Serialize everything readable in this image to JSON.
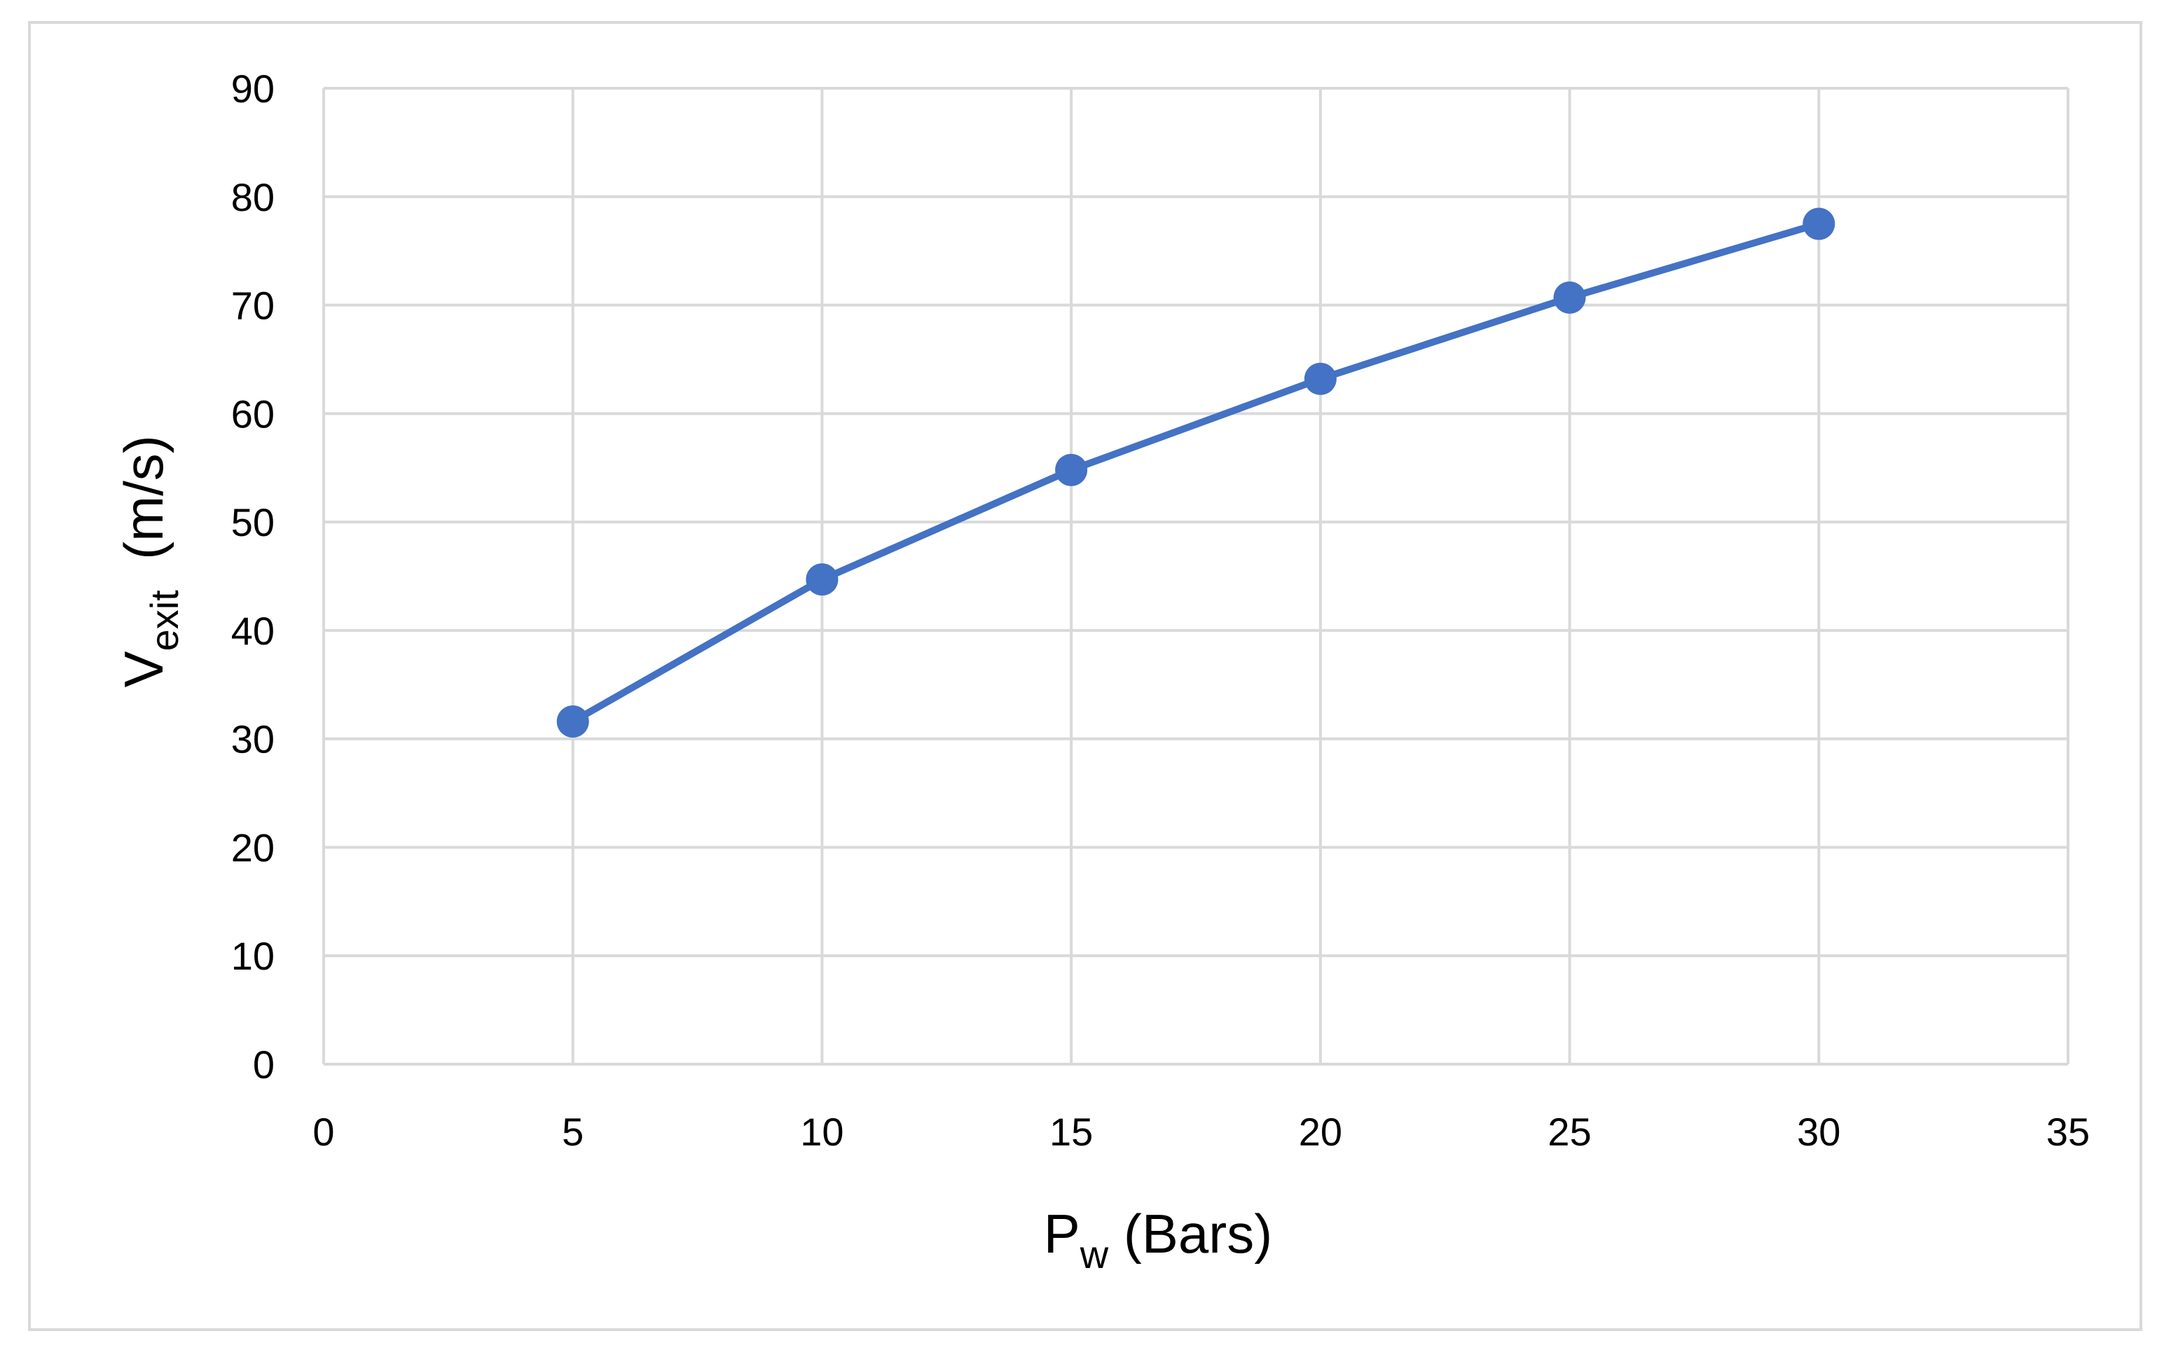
{
  "chart_data": {
    "type": "line",
    "title": "",
    "xlabel": {
      "main": "P",
      "sub": "w",
      "rest": " (Bars)"
    },
    "ylabel": {
      "main": "V",
      "sub": "exit",
      "rest": "  (m/s)"
    },
    "xlim": [
      0,
      35
    ],
    "ylim": [
      0,
      90
    ],
    "xticks": [
      0,
      5,
      10,
      15,
      20,
      25,
      30,
      35
    ],
    "yticks": [
      0,
      10,
      20,
      30,
      40,
      50,
      60,
      70,
      80,
      90
    ],
    "grid": true,
    "legend": "none",
    "series": [
      {
        "x": [
          5,
          10,
          15,
          20,
          25,
          30
        ],
        "y": [
          31.6,
          44.7,
          54.8,
          63.2,
          70.7,
          77.5
        ],
        "color": "#4472c4",
        "marker": "circle"
      }
    ]
  }
}
